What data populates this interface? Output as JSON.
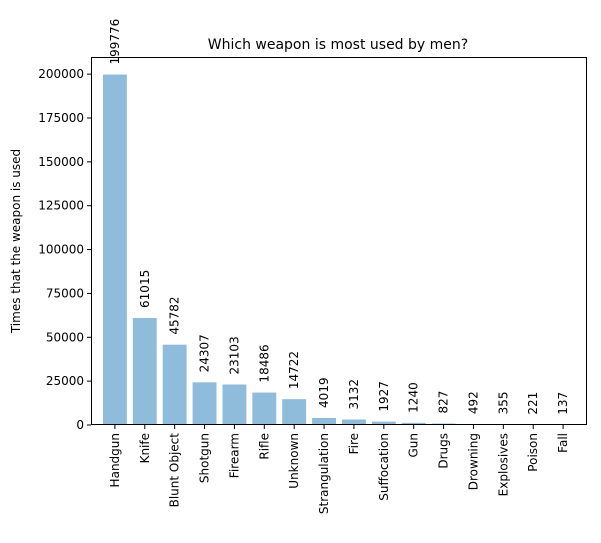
{
  "chart_data": {
    "type": "bar",
    "title": "Which weapon is most used by men?",
    "xlabel": "",
    "ylabel": "Times that the weapon is used",
    "categories": [
      "Handgun",
      "Knife",
      "Blunt Object",
      "Shotgun",
      "Firearm",
      "Rifle",
      "Unknown",
      "Strangulation",
      "Fire",
      "Suffocation",
      "Gun",
      "Drugs",
      "Drowning",
      "Explosives",
      "Poison",
      "Fall"
    ],
    "values": [
      199776,
      61015,
      45782,
      24307,
      23103,
      18486,
      14722,
      4019,
      3132,
      1927,
      1240,
      827,
      492,
      355,
      221,
      137
    ],
    "data_labels": [
      "199776",
      "61015",
      "45782",
      "24307",
      "23103",
      "18486",
      "14722",
      "4019",
      "3132",
      "1927",
      "1240",
      "827",
      "492",
      "355",
      "221",
      "137"
    ],
    "ylim": [
      0,
      209765
    ],
    "yticks": [
      0,
      25000,
      50000,
      75000,
      100000,
      125000,
      150000,
      175000,
      200000
    ],
    "ytick_labels": [
      "0",
      "25000",
      "50000",
      "75000",
      "100000",
      "125000",
      "150000",
      "175000",
      "200000"
    ],
    "grid": false,
    "legend": "none",
    "bar_color": "#8fbcdb",
    "bar_opacity": 1
  }
}
